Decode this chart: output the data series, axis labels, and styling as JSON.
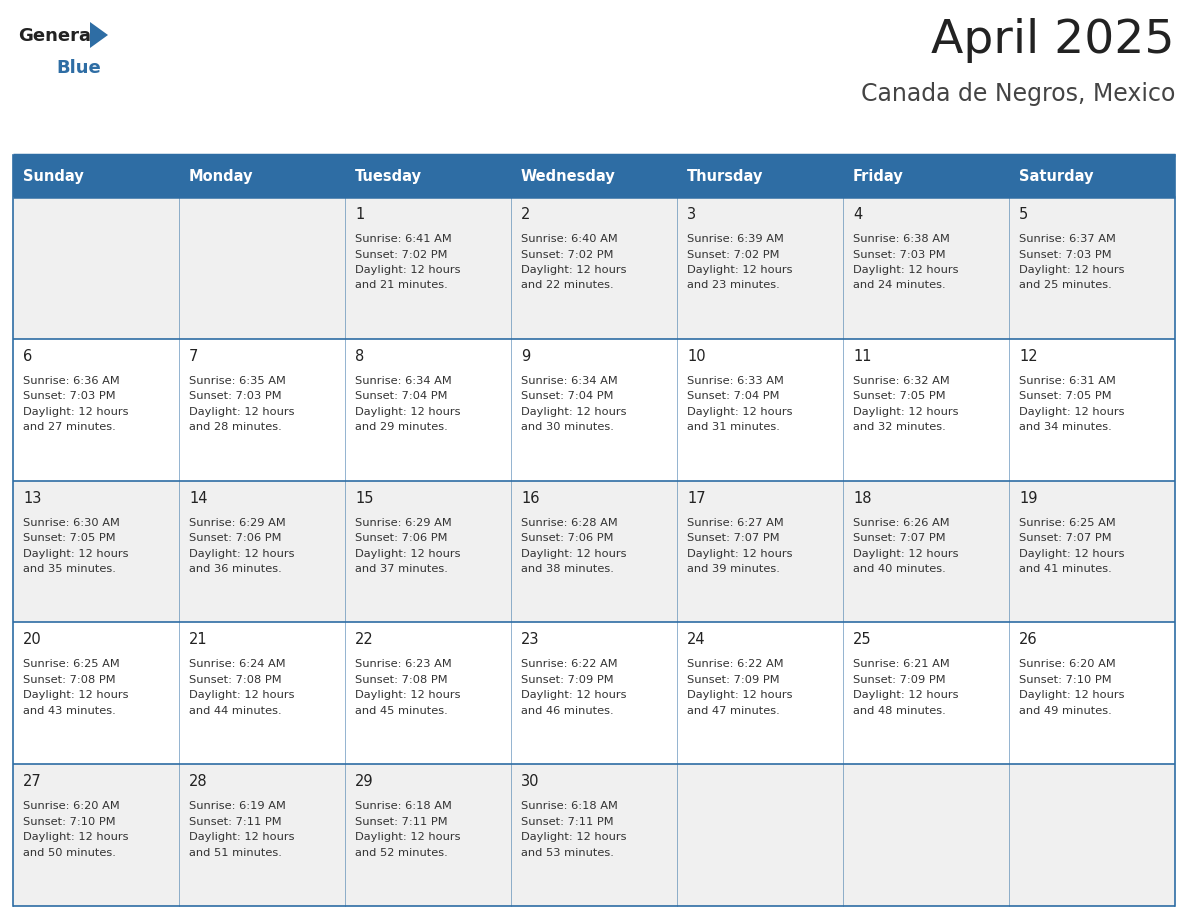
{
  "title": "April 2025",
  "subtitle": "Canada de Negros, Mexico",
  "header_bg_color": "#2E6DA4",
  "header_text_color": "#FFFFFF",
  "cell_bg_color_odd": "#F0F0F0",
  "cell_bg_color_even": "#FFFFFF",
  "grid_line_color": "#2E6DA4",
  "day_names": [
    "Sunday",
    "Monday",
    "Tuesday",
    "Wednesday",
    "Thursday",
    "Friday",
    "Saturday"
  ],
  "title_color": "#222222",
  "subtitle_color": "#444444",
  "logo_text_color": "#222222",
  "logo_blue_color": "#2E6DA4",
  "cell_text_color": "#333333",
  "day_number_color": "#222222",
  "weeks": [
    [
      {
        "day": "",
        "sunrise": "",
        "sunset": "",
        "daylight": ""
      },
      {
        "day": "",
        "sunrise": "",
        "sunset": "",
        "daylight": ""
      },
      {
        "day": "1",
        "sunrise": "6:41 AM",
        "sunset": "7:02 PM",
        "daylight": "12 hours and 21 minutes."
      },
      {
        "day": "2",
        "sunrise": "6:40 AM",
        "sunset": "7:02 PM",
        "daylight": "12 hours and 22 minutes."
      },
      {
        "day": "3",
        "sunrise": "6:39 AM",
        "sunset": "7:02 PM",
        "daylight": "12 hours and 23 minutes."
      },
      {
        "day": "4",
        "sunrise": "6:38 AM",
        "sunset": "7:03 PM",
        "daylight": "12 hours and 24 minutes."
      },
      {
        "day": "5",
        "sunrise": "6:37 AM",
        "sunset": "7:03 PM",
        "daylight": "12 hours and 25 minutes."
      }
    ],
    [
      {
        "day": "6",
        "sunrise": "6:36 AM",
        "sunset": "7:03 PM",
        "daylight": "12 hours and 27 minutes."
      },
      {
        "day": "7",
        "sunrise": "6:35 AM",
        "sunset": "7:03 PM",
        "daylight": "12 hours and 28 minutes."
      },
      {
        "day": "8",
        "sunrise": "6:34 AM",
        "sunset": "7:04 PM",
        "daylight": "12 hours and 29 minutes."
      },
      {
        "day": "9",
        "sunrise": "6:34 AM",
        "sunset": "7:04 PM",
        "daylight": "12 hours and 30 minutes."
      },
      {
        "day": "10",
        "sunrise": "6:33 AM",
        "sunset": "7:04 PM",
        "daylight": "12 hours and 31 minutes."
      },
      {
        "day": "11",
        "sunrise": "6:32 AM",
        "sunset": "7:05 PM",
        "daylight": "12 hours and 32 minutes."
      },
      {
        "day": "12",
        "sunrise": "6:31 AM",
        "sunset": "7:05 PM",
        "daylight": "12 hours and 34 minutes."
      }
    ],
    [
      {
        "day": "13",
        "sunrise": "6:30 AM",
        "sunset": "7:05 PM",
        "daylight": "12 hours and 35 minutes."
      },
      {
        "day": "14",
        "sunrise": "6:29 AM",
        "sunset": "7:06 PM",
        "daylight": "12 hours and 36 minutes."
      },
      {
        "day": "15",
        "sunrise": "6:29 AM",
        "sunset": "7:06 PM",
        "daylight": "12 hours and 37 minutes."
      },
      {
        "day": "16",
        "sunrise": "6:28 AM",
        "sunset": "7:06 PM",
        "daylight": "12 hours and 38 minutes."
      },
      {
        "day": "17",
        "sunrise": "6:27 AM",
        "sunset": "7:07 PM",
        "daylight": "12 hours and 39 minutes."
      },
      {
        "day": "18",
        "sunrise": "6:26 AM",
        "sunset": "7:07 PM",
        "daylight": "12 hours and 40 minutes."
      },
      {
        "day": "19",
        "sunrise": "6:25 AM",
        "sunset": "7:07 PM",
        "daylight": "12 hours and 41 minutes."
      }
    ],
    [
      {
        "day": "20",
        "sunrise": "6:25 AM",
        "sunset": "7:08 PM",
        "daylight": "12 hours and 43 minutes."
      },
      {
        "day": "21",
        "sunrise": "6:24 AM",
        "sunset": "7:08 PM",
        "daylight": "12 hours and 44 minutes."
      },
      {
        "day": "22",
        "sunrise": "6:23 AM",
        "sunset": "7:08 PM",
        "daylight": "12 hours and 45 minutes."
      },
      {
        "day": "23",
        "sunrise": "6:22 AM",
        "sunset": "7:09 PM",
        "daylight": "12 hours and 46 minutes."
      },
      {
        "day": "24",
        "sunrise": "6:22 AM",
        "sunset": "7:09 PM",
        "daylight": "12 hours and 47 minutes."
      },
      {
        "day": "25",
        "sunrise": "6:21 AM",
        "sunset": "7:09 PM",
        "daylight": "12 hours and 48 minutes."
      },
      {
        "day": "26",
        "sunrise": "6:20 AM",
        "sunset": "7:10 PM",
        "daylight": "12 hours and 49 minutes."
      }
    ],
    [
      {
        "day": "27",
        "sunrise": "6:20 AM",
        "sunset": "7:10 PM",
        "daylight": "12 hours and 50 minutes."
      },
      {
        "day": "28",
        "sunrise": "6:19 AM",
        "sunset": "7:11 PM",
        "daylight": "12 hours and 51 minutes."
      },
      {
        "day": "29",
        "sunrise": "6:18 AM",
        "sunset": "7:11 PM",
        "daylight": "12 hours and 52 minutes."
      },
      {
        "day": "30",
        "sunrise": "6:18 AM",
        "sunset": "7:11 PM",
        "daylight": "12 hours and 53 minutes."
      },
      {
        "day": "",
        "sunrise": "",
        "sunset": "",
        "daylight": ""
      },
      {
        "day": "",
        "sunrise": "",
        "sunset": "",
        "daylight": ""
      },
      {
        "day": "",
        "sunrise": "",
        "sunset": "",
        "daylight": ""
      }
    ]
  ],
  "fig_width": 11.88,
  "fig_height": 9.18,
  "dpi": 100
}
